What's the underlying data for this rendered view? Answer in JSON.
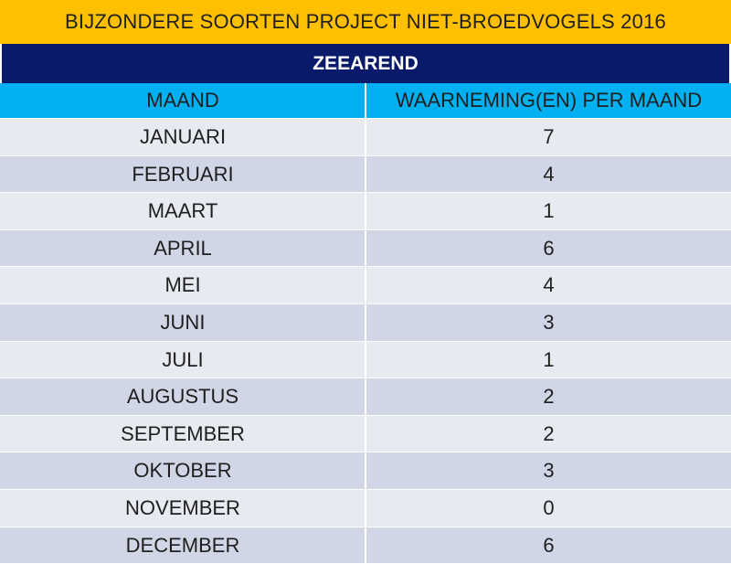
{
  "title": "BIJZONDERE SOORTEN PROJECT  NIET-BROEDVOGELS  2016",
  "species": "ZEEAREND",
  "columns": {
    "month": "MAAND",
    "count": "WAARNEMING(EN) PER MAAND"
  },
  "rows": [
    {
      "month": "JANUARI",
      "count": "7"
    },
    {
      "month": "FEBRUARI",
      "count": "4"
    },
    {
      "month": "MAART",
      "count": "1"
    },
    {
      "month": "APRIL",
      "count": "6"
    },
    {
      "month": "MEI",
      "count": "4"
    },
    {
      "month": "JUNI",
      "count": "3"
    },
    {
      "month": "JULI",
      "count": "1"
    },
    {
      "month": "AUGUSTUS",
      "count": "2"
    },
    {
      "month": "SEPTEMBER",
      "count": "2"
    },
    {
      "month": "OKTOBER",
      "count": "3"
    },
    {
      "month": "NOVEMBER",
      "count": "0"
    },
    {
      "month": "DECEMBER",
      "count": "6"
    }
  ],
  "colors": {
    "title_bg": "#ffc000",
    "species_bg": "#0a1a6b",
    "header_bg": "#00b0f0",
    "row_light": "#e8eaf1",
    "row_dark": "#d0d6e6"
  }
}
